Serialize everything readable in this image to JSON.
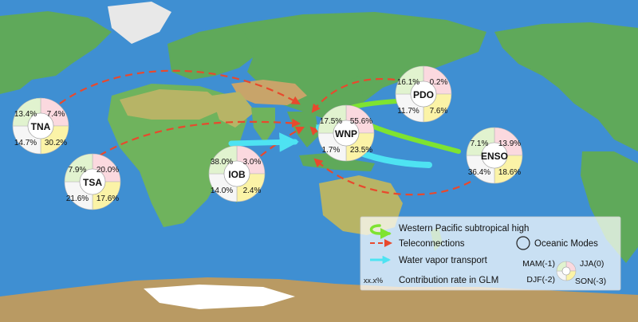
{
  "modes": [
    {
      "id": "tna",
      "label": "TNA",
      "values": {
        "mam": "13.4%",
        "jja": "7.4%",
        "djf": "14.7%",
        "son": "30.2%"
      }
    },
    {
      "id": "tsa",
      "label": "TSA",
      "values": {
        "mam": "7.9%",
        "jja": "20.0%",
        "djf": "21.6%",
        "son": "17.6%"
      }
    },
    {
      "id": "iob",
      "label": "IOB",
      "values": {
        "mam": "38.0%",
        "jja": "3.0%",
        "djf": "14.0%",
        "son": "2.4%"
      }
    },
    {
      "id": "wnp",
      "label": "WNP",
      "values": {
        "mam": "17.5%",
        "jja": "55.6%",
        "djf": "1.7%",
        "son": "23.5%"
      }
    },
    {
      "id": "pdo",
      "label": "PDO",
      "values": {
        "mam": "16.1%",
        "jja": "0.2%",
        "djf": "11.7%",
        "son": "7.6%"
      }
    },
    {
      "id": "enso",
      "label": "ENSO",
      "values": {
        "mam": "7.1%",
        "jja": "13.9%",
        "djf": "36.4%",
        "son": "18.6%"
      }
    }
  ],
  "legend": {
    "subtropical_high": "Western Pacific subtropical high",
    "teleconnections": "Teleconnections",
    "water_vapor": "Water vapor transport",
    "contribution_symbol": "xx.x%",
    "contribution": "Contribution rate in GLM",
    "oceanic_modes": "Oceanic Modes",
    "mam": "MAM(-1)",
    "jja": "JJA(0)",
    "djf": "DJF(-2)",
    "son": "SON(-3)"
  },
  "colors": {
    "ocean": "#3f8fd2",
    "land": "#5fa95a",
    "highland": "#c8a46a",
    "ice": "#ffffff",
    "mam": "#e1f3cf",
    "jja": "#fbd9df",
    "djf": "#f6f6f6",
    "son": "#fbf3a7",
    "teleconnection": "#e8492d",
    "subtropical_high": "#7ee331",
    "water_vapor": "#4ee3f2"
  }
}
